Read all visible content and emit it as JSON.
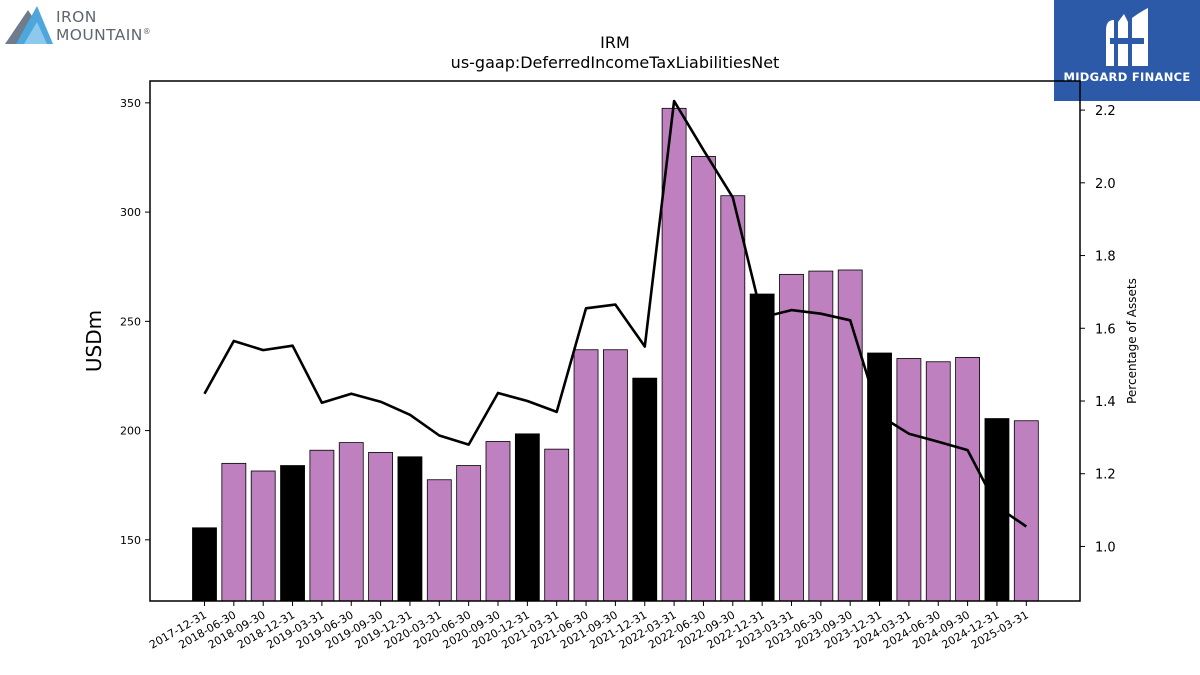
{
  "brand": {
    "logo_line1": "IRON",
    "logo_line2": "MOUNTAIN",
    "logo_mark": "®",
    "badge_text": "MIDGARD FINANCE",
    "badge_color": "#2c5aa8"
  },
  "chart_data": {
    "type": "bar",
    "title": "IRM",
    "subtitle": "us-gaap:DeferredIncomeTaxLiabilitiesNet",
    "ylabel": "USDm",
    "y2label": "Percentage of Assets",
    "ylim": [
      122,
      360
    ],
    "y2lim": [
      0.85,
      2.28
    ],
    "yticks": [
      150,
      200,
      250,
      300,
      350
    ],
    "y2ticks": [
      "1.0",
      "1.2",
      "1.4",
      "1.6",
      "1.8",
      "2.0",
      "2.2"
    ],
    "grid": false,
    "categories": [
      "2017-12-31",
      "2018-06-30",
      "2018-09-30",
      "2018-12-31",
      "2019-03-31",
      "2019-06-30",
      "2019-09-30",
      "2019-12-31",
      "2020-03-31",
      "2020-06-30",
      "2020-09-30",
      "2020-12-31",
      "2021-03-31",
      "2021-06-30",
      "2021-09-30",
      "2021-12-31",
      "2022-03-31",
      "2022-06-30",
      "2022-09-30",
      "2022-12-31",
      "2023-03-31",
      "2023-06-30",
      "2023-09-30",
      "2023-12-31",
      "2024-03-31",
      "2024-06-30",
      "2024-09-30",
      "2024-12-31",
      "2025-03-31"
    ],
    "series": [
      {
        "kind": "bar",
        "axis": "left",
        "values": [
          155.5,
          185,
          181.5,
          184,
          191,
          194.5,
          190,
          188,
          177.5,
          184,
          195,
          198.5,
          191.5,
          237,
          237,
          224,
          347.5,
          325.5,
          307.5,
          262.5,
          271.5,
          273,
          273.5,
          235.5,
          233,
          231.5,
          233.5,
          205.5,
          204.5
        ],
        "colors": {
          "year_end": "#000000",
          "quarter": "#bf80bf"
        }
      },
      {
        "kind": "line",
        "axis": "right",
        "color": "#000000",
        "values": [
          1.42,
          1.565,
          1.54,
          1.552,
          1.395,
          1.42,
          1.398,
          1.362,
          1.305,
          1.28,
          1.422,
          1.4,
          1.37,
          1.655,
          1.665,
          1.55,
          2.225,
          2.09,
          1.96,
          1.63,
          1.65,
          1.64,
          1.622,
          1.36,
          1.31,
          1.288,
          1.265,
          1.11,
          1.055
        ]
      }
    ]
  }
}
